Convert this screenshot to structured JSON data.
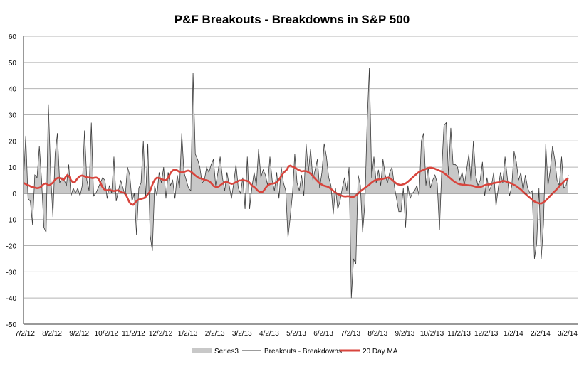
{
  "chart_data": {
    "type": "line",
    "title": "P&F Breakouts - Breakdowns in S&P 500",
    "ylim": [
      -50,
      60
    ],
    "yticks": [
      60,
      50,
      40,
      30,
      20,
      10,
      0,
      -10,
      -20,
      -30,
      -40,
      -50
    ],
    "xticks": [
      "7/2/12",
      "8/2/12",
      "9/2/12",
      "10/2/12",
      "11/2/12",
      "12/2/12",
      "1/2/13",
      "2/2/13",
      "3/2/13",
      "4/2/13",
      "5/2/13",
      "6/2/13",
      "7/2/13",
      "8/2/13",
      "9/2/13",
      "10/2/13",
      "11/2/13",
      "12/2/13",
      "1/2/14",
      "2/2/14",
      "3/2/14"
    ],
    "grid": true,
    "legend_position": "bottom",
    "colors": {
      "area": "#c8c8c8",
      "line": "#3a3a3a",
      "ma": "#d8453d",
      "grid": "#b4b4b4"
    },
    "series": [
      {
        "name": "Series3",
        "kind": "area"
      },
      {
        "name": "Breakouts - Breakdowns",
        "kind": "line"
      },
      {
        "name": "20 Day MA",
        "kind": "line"
      }
    ],
    "values": [
      5,
      22,
      -2,
      -3,
      -12,
      7,
      6,
      18,
      5,
      -13,
      -15,
      34,
      8,
      -9,
      15,
      23,
      4,
      6,
      5,
      3,
      11,
      -1,
      2,
      0,
      2,
      -1,
      3,
      24,
      5,
      1,
      27,
      -1,
      0,
      2,
      4,
      6,
      5,
      -2,
      3,
      0,
      14,
      -3,
      1,
      5,
      2,
      -1,
      10,
      7,
      -3,
      0,
      -16,
      2,
      4,
      20,
      -2,
      19,
      -16,
      -22,
      3,
      -1,
      8,
      4,
      10,
      -2,
      8,
      3,
      5,
      -2,
      7,
      2,
      23,
      8,
      5,
      2,
      1,
      46,
      15,
      13,
      10,
      4,
      5,
      10,
      8,
      11,
      13,
      3,
      8,
      14,
      6,
      1,
      8,
      3,
      -2,
      4,
      11,
      2,
      0,
      6,
      -6,
      14,
      -6,
      2,
      8,
      3,
      17,
      6,
      9,
      7,
      3,
      14,
      5,
      1,
      8,
      -2,
      10,
      4,
      1,
      -17,
      -9,
      0,
      15,
      4,
      1,
      7,
      -1,
      19,
      8,
      17,
      5,
      9,
      13,
      2,
      8,
      19,
      14,
      6,
      3,
      -8,
      2,
      -6,
      -3,
      2,
      6,
      1,
      10,
      -40,
      -25,
      -27,
      7,
      3,
      -15,
      -4,
      27,
      48,
      6,
      14,
      4,
      9,
      3,
      13,
      7,
      4,
      8,
      10,
      3,
      -2,
      -7,
      -7,
      2,
      -13,
      3,
      -2,
      0,
      1,
      3,
      -1,
      20,
      23,
      3,
      10,
      2,
      5,
      7,
      4,
      -14,
      9,
      26,
      27,
      7,
      25,
      11,
      11,
      10,
      5,
      8,
      3,
      9,
      15,
      4,
      20,
      7,
      3,
      5,
      12,
      -1,
      6,
      1,
      3,
      8,
      -5,
      2,
      8,
      4,
      14,
      6,
      -1,
      3,
      16,
      12,
      5,
      8,
      1,
      7,
      2,
      0,
      1,
      -25,
      -19,
      2,
      -25,
      -12,
      19,
      3,
      9,
      18,
      13,
      5,
      3,
      14,
      2,
      3,
      7
    ],
    "ma": [
      4,
      3.6,
      3.2,
      3,
      2.6,
      2.4,
      2.2,
      2,
      2,
      2.2,
      2.8,
      3.5,
      3.8,
      3.4,
      3,
      3.5,
      4,
      5,
      5.6,
      6,
      5.8,
      5.4,
      5.2,
      6.2,
      7,
      6.4,
      5,
      4.2,
      4.2,
      5.2,
      6,
      6.6,
      6.8,
      6.6,
      6.3,
      6.1,
      6,
      5.9,
      5.8,
      6,
      6,
      5.6,
      4.2,
      2.6,
      1.6,
      1.2,
      1.2,
      1.3,
      1.1,
      0.9,
      0.9,
      1.1,
      1.1,
      0.6,
      0.3,
      0.2,
      -0.5,
      -2,
      -3.5,
      -4.2,
      -4.4,
      -3.6,
      -2.8,
      -2.4,
      -2.2,
      -2,
      -1.8,
      -1.2,
      -0.3,
      0.5,
      2.4,
      4.2,
      5.4,
      6,
      5.8,
      5.6,
      5.3,
      5.1,
      5,
      5.8,
      7.2,
      8.3,
      8.9,
      9,
      8.8,
      8.3,
      8,
      8,
      8.2,
      8.5,
      8.7,
      8.5,
      8.1,
      7.4,
      6.8,
      6.3,
      5.8,
      5.7,
      5.4,
      5.1,
      5,
      4.8,
      4.4,
      3.6,
      2.8,
      2.5,
      2.4,
      2.7,
      3.3,
      3.8,
      4.2,
      4.4,
      4.1,
      3.8,
      3.6,
      3.8,
      4.2,
      4.5,
      4.9,
      4.9,
      5.1,
      4.9,
      4.8,
      4.5,
      3.8,
      2.9,
      2.5,
      1.9,
      1.1,
      0.6,
      0.3,
      0.7,
      1.6,
      2.6,
      3.2,
      3.6,
      3.7,
      3.8,
      4,
      4.5,
      5.5,
      6.6,
      7.6,
      8.4,
      9,
      10.3,
      10.6,
      10.2,
      10,
      9.6,
      9.1,
      8.8,
      8.4,
      8.5,
      8.5,
      8.4,
      8,
      7.5,
      6.8,
      6,
      5.2,
      4.5,
      3.8,
      3.4,
      3,
      2.8,
      2.6,
      2.3,
      1.8,
      1.2,
      0.6,
      0.1,
      -0.3,
      -0.6,
      -0.9,
      -1.1,
      -1.2,
      -1.1,
      -1.1,
      -1.3,
      -1.5,
      -1.2,
      -0.7,
      -0.1,
      0.6,
      1.2,
      1.7,
      2.3,
      2.7,
      3.2,
      3.9,
      4.4,
      4.9,
      5.1,
      5.3,
      5.4,
      5.4,
      5.6,
      5.8,
      6,
      5.9,
      5.5,
      4.9,
      4.3,
      3.7,
      3.4,
      3.2,
      3.3,
      3.5,
      3.8,
      4.3,
      4.9,
      5.5,
      6.2,
      6.8,
      7.4,
      8,
      8.4,
      8.7,
      9,
      9.3,
      9.6,
      9.8,
      9.8,
      9.6,
      9.4,
      9.1,
      8.8,
      8.5,
      8.2,
      7.7,
      7.2,
      6.6,
      6,
      5.4,
      4.8,
      4.3,
      3.9,
      3.6,
      3.4,
      3.3,
      3.3,
      3.2,
      3.1,
      3
    ],
    "ma2": [
      3,
      2.8,
      2.6,
      2.4,
      2.3,
      2.4,
      2.7,
      3,
      3.3,
      3.4,
      3.4,
      3.6,
      3.9,
      4,
      4.1,
      4.2,
      4.5,
      4.7,
      4.7,
      4.5,
      4.2,
      4,
      3.7,
      3.3,
      3,
      2.5,
      2,
      1.5,
      0.8,
      0.1,
      -0.5,
      -1.1,
      -1.7,
      -2.3,
      -2.9,
      -3.3,
      -3.6,
      -3.8,
      -3.9,
      -3.6,
      -3.1,
      -2.5,
      -1.8,
      -1,
      -0.3,
      0.4,
      1.1,
      1.8,
      2.6,
      3.4,
      4.1,
      4.8,
      5.3,
      5.7
    ]
  },
  "legend": {
    "series3": "Series3",
    "line": "Breakouts - Breakdowns",
    "ma": "20 Day MA"
  }
}
